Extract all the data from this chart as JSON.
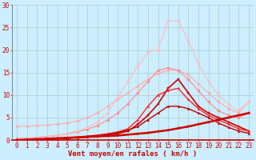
{
  "background_color": "#cceeff",
  "grid_color": "#b0c8c8",
  "xlabel": "Vent moyen/en rafales ( km/h )",
  "xlabel_color": "#cc0000",
  "xlabel_fontsize": 6.5,
  "tick_color": "#cc0000",
  "tick_fontsize": 5.5,
  "xlim": [
    -0.5,
    23.5
  ],
  "ylim": [
    0,
    30
  ],
  "yticks": [
    0,
    5,
    10,
    15,
    20,
    25,
    30
  ],
  "xticks": [
    0,
    1,
    2,
    3,
    4,
    5,
    6,
    7,
    8,
    9,
    10,
    11,
    12,
    13,
    14,
    15,
    16,
    17,
    18,
    19,
    20,
    21,
    22,
    23
  ],
  "x": [
    0,
    1,
    2,
    3,
    4,
    5,
    6,
    7,
    8,
    9,
    10,
    11,
    12,
    13,
    14,
    15,
    16,
    17,
    18,
    19,
    20,
    21,
    22,
    23
  ],
  "series": [
    {
      "color": "#ffaaaa",
      "marker": "D",
      "markersize": 1.8,
      "linewidth": 0.8,
      "y": [
        3.0,
        3.1,
        3.2,
        3.3,
        3.5,
        3.8,
        4.2,
        5.0,
        6.0,
        7.5,
        9.0,
        10.5,
        12.0,
        13.5,
        14.8,
        15.5,
        15.5,
        14.5,
        12.5,
        10.5,
        8.5,
        7.0,
        6.0,
        8.5
      ]
    },
    {
      "color": "#ff8888",
      "marker": "D",
      "markersize": 1.8,
      "linewidth": 0.8,
      "y": [
        0.3,
        0.4,
        0.6,
        0.8,
        1.0,
        1.4,
        1.8,
        2.4,
        3.2,
        4.5,
        6.0,
        8.0,
        10.5,
        13.0,
        15.5,
        16.0,
        15.5,
        13.5,
        11.0,
        8.5,
        6.5,
        5.5,
        5.0,
        6.0
      ]
    },
    {
      "color": "#ffbbbb",
      "marker": "D",
      "markersize": 1.8,
      "linewidth": 0.8,
      "y": [
        0.2,
        0.3,
        0.5,
        0.7,
        1.0,
        1.4,
        2.0,
        2.8,
        4.0,
        6.0,
        9.5,
        13.0,
        16.5,
        19.5,
        20.0,
        26.5,
        26.5,
        22.0,
        17.0,
        13.0,
        10.0,
        8.0,
        6.5,
        8.5
      ]
    },
    {
      "color": "#cc0000",
      "marker": "s",
      "markersize": 1.8,
      "linewidth": 1.2,
      "y": [
        0.0,
        0.05,
        0.1,
        0.2,
        0.3,
        0.4,
        0.5,
        0.7,
        0.9,
        1.1,
        1.4,
        2.0,
        3.5,
        5.5,
        8.0,
        11.5,
        13.5,
        10.5,
        7.5,
        6.0,
        5.0,
        4.0,
        3.0,
        2.0
      ]
    },
    {
      "color": "#ff2222",
      "marker": "^",
      "markersize": 1.8,
      "linewidth": 1.0,
      "y": [
        0.0,
        0.05,
        0.1,
        0.2,
        0.3,
        0.5,
        0.7,
        0.9,
        1.1,
        1.4,
        1.8,
        2.5,
        4.5,
        7.5,
        10.0,
        11.0,
        11.5,
        9.0,
        7.0,
        5.5,
        4.5,
        3.5,
        2.5,
        2.0
      ]
    },
    {
      "color": "#bb0000",
      "marker": "^",
      "markersize": 1.8,
      "linewidth": 1.0,
      "y": [
        0.0,
        0.05,
        0.1,
        0.15,
        0.25,
        0.4,
        0.6,
        0.8,
        1.0,
        1.3,
        1.7,
        2.2,
        3.0,
        4.5,
        6.0,
        7.5,
        7.5,
        7.0,
        6.0,
        5.0,
        3.8,
        2.8,
        2.0,
        1.5
      ]
    },
    {
      "color": "#cc0000",
      "marker": "s",
      "markersize": 1.8,
      "linewidth": 1.8,
      "y": [
        0.0,
        0.1,
        0.2,
        0.3,
        0.4,
        0.5,
        0.6,
        0.7,
        0.8,
        0.9,
        1.0,
        1.2,
        1.4,
        1.6,
        1.9,
        2.2,
        2.6,
        3.0,
        3.5,
        4.0,
        4.5,
        5.0,
        5.5,
        6.0
      ]
    }
  ]
}
